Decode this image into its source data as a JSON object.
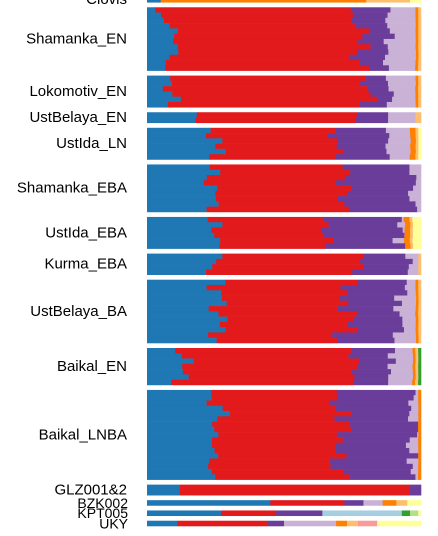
{
  "chart_data": {
    "type": "bar",
    "orientation": "horizontal",
    "stacked": true,
    "normalized": true,
    "legend": "none",
    "components": [
      {
        "color": "#1f77b4"
      },
      {
        "color": "#e31a1c"
      },
      {
        "color": "#6a3d9a"
      },
      {
        "color": "#cab2d6"
      },
      {
        "color": "#ff7f00"
      },
      {
        "color": "#fdbf6f"
      },
      {
        "color": "#fb9a99"
      },
      {
        "color": "#a6cee3"
      },
      {
        "color": "#33a02c"
      },
      {
        "color": "#b2df8a"
      },
      {
        "color": "#ffff99"
      }
    ],
    "groups": [
      {
        "label": "Clovis",
        "n": 1,
        "a": [
          0.05,
          0,
          0,
          0,
          0.75,
          0.16,
          0,
          0,
          0,
          0,
          0.04
        ],
        "v": 0
      },
      {
        "label": "Shamanka_EN",
        "n": 12,
        "a": [
          0.08,
          0.7,
          0.1,
          0.1,
          0.01,
          0.01,
          0,
          0,
          0,
          0,
          0
        ],
        "v": 0.025
      },
      {
        "label": "Lokomotiv_EN",
        "n": 6,
        "a": [
          0.09,
          0.71,
          0.09,
          0.09,
          0.01,
          0.01,
          0,
          0,
          0,
          0,
          0
        ],
        "v": 0.02
      },
      {
        "label": "UstBelaya_EN",
        "n": 2,
        "a": [
          0.18,
          0.58,
          0.12,
          0.1,
          0,
          0.02,
          0,
          0,
          0,
          0,
          0
        ],
        "v": 0.005
      },
      {
        "label": "UstIda_LN",
        "n": 6,
        "a": [
          0.25,
          0.45,
          0.18,
          0.08,
          0.02,
          0.01,
          0,
          0,
          0,
          0,
          0.01
        ],
        "v": 0.03
      },
      {
        "label": "Shamanka_EBA",
        "n": 9,
        "a": [
          0.24,
          0.48,
          0.25,
          0.03,
          0,
          0,
          0,
          0,
          0,
          0,
          0
        ],
        "v": 0.02
      },
      {
        "label": "UstIda_EBA",
        "n": 6,
        "a": [
          0.26,
          0.4,
          0.26,
          0.02,
          0.02,
          0.01,
          0,
          0,
          0,
          0,
          0.03
        ],
        "v": 0.025
      },
      {
        "label": "Kurma_EBA",
        "n": 4,
        "a": [
          0.25,
          0.53,
          0.18,
          0.03,
          0,
          0.01,
          0,
          0,
          0,
          0,
          0
        ],
        "v": 0.02
      },
      {
        "label": "UstBelaya_BA",
        "n": 12,
        "a": [
          0.26,
          0.48,
          0.18,
          0.06,
          0.01,
          0.01,
          0,
          0,
          0,
          0,
          0
        ],
        "v": 0.03
      },
      {
        "label": "Baikal_EN",
        "n": 7,
        "a": [
          0.13,
          0.62,
          0.14,
          0.08,
          0.01,
          0.01,
          0,
          0,
          0.01,
          0,
          0
        ],
        "v": 0.025
      },
      {
        "label": "Baikal_LNBA",
        "n": 17,
        "a": [
          0.26,
          0.45,
          0.26,
          0.02,
          0.01,
          0,
          0,
          0,
          0,
          0,
          0
        ],
        "v": 0.025
      },
      {
        "label": "GLZ001&2",
        "n": 2,
        "a": [
          0.12,
          0.84,
          0.04,
          0,
          0,
          0,
          0,
          0,
          0,
          0,
          0
        ],
        "v": 0
      },
      {
        "label": "BZK002",
        "n": 1,
        "a": [
          0.45,
          0.27,
          0.07,
          0.07,
          0.05,
          0.04,
          0,
          0,
          0,
          0,
          0.05
        ],
        "v": 0
      },
      {
        "label": "KPT005",
        "n": 1,
        "a": [
          0.27,
          0.2,
          0.17,
          0,
          0,
          0,
          0,
          0.29,
          0.03,
          0.03,
          0.01
        ],
        "v": 0
      },
      {
        "label": "UKY",
        "n": 1,
        "a": [
          0.11,
          0.33,
          0.06,
          0.19,
          0.04,
          0.04,
          0.07,
          0,
          0,
          0,
          0.16
        ],
        "v": 0
      }
    ]
  }
}
